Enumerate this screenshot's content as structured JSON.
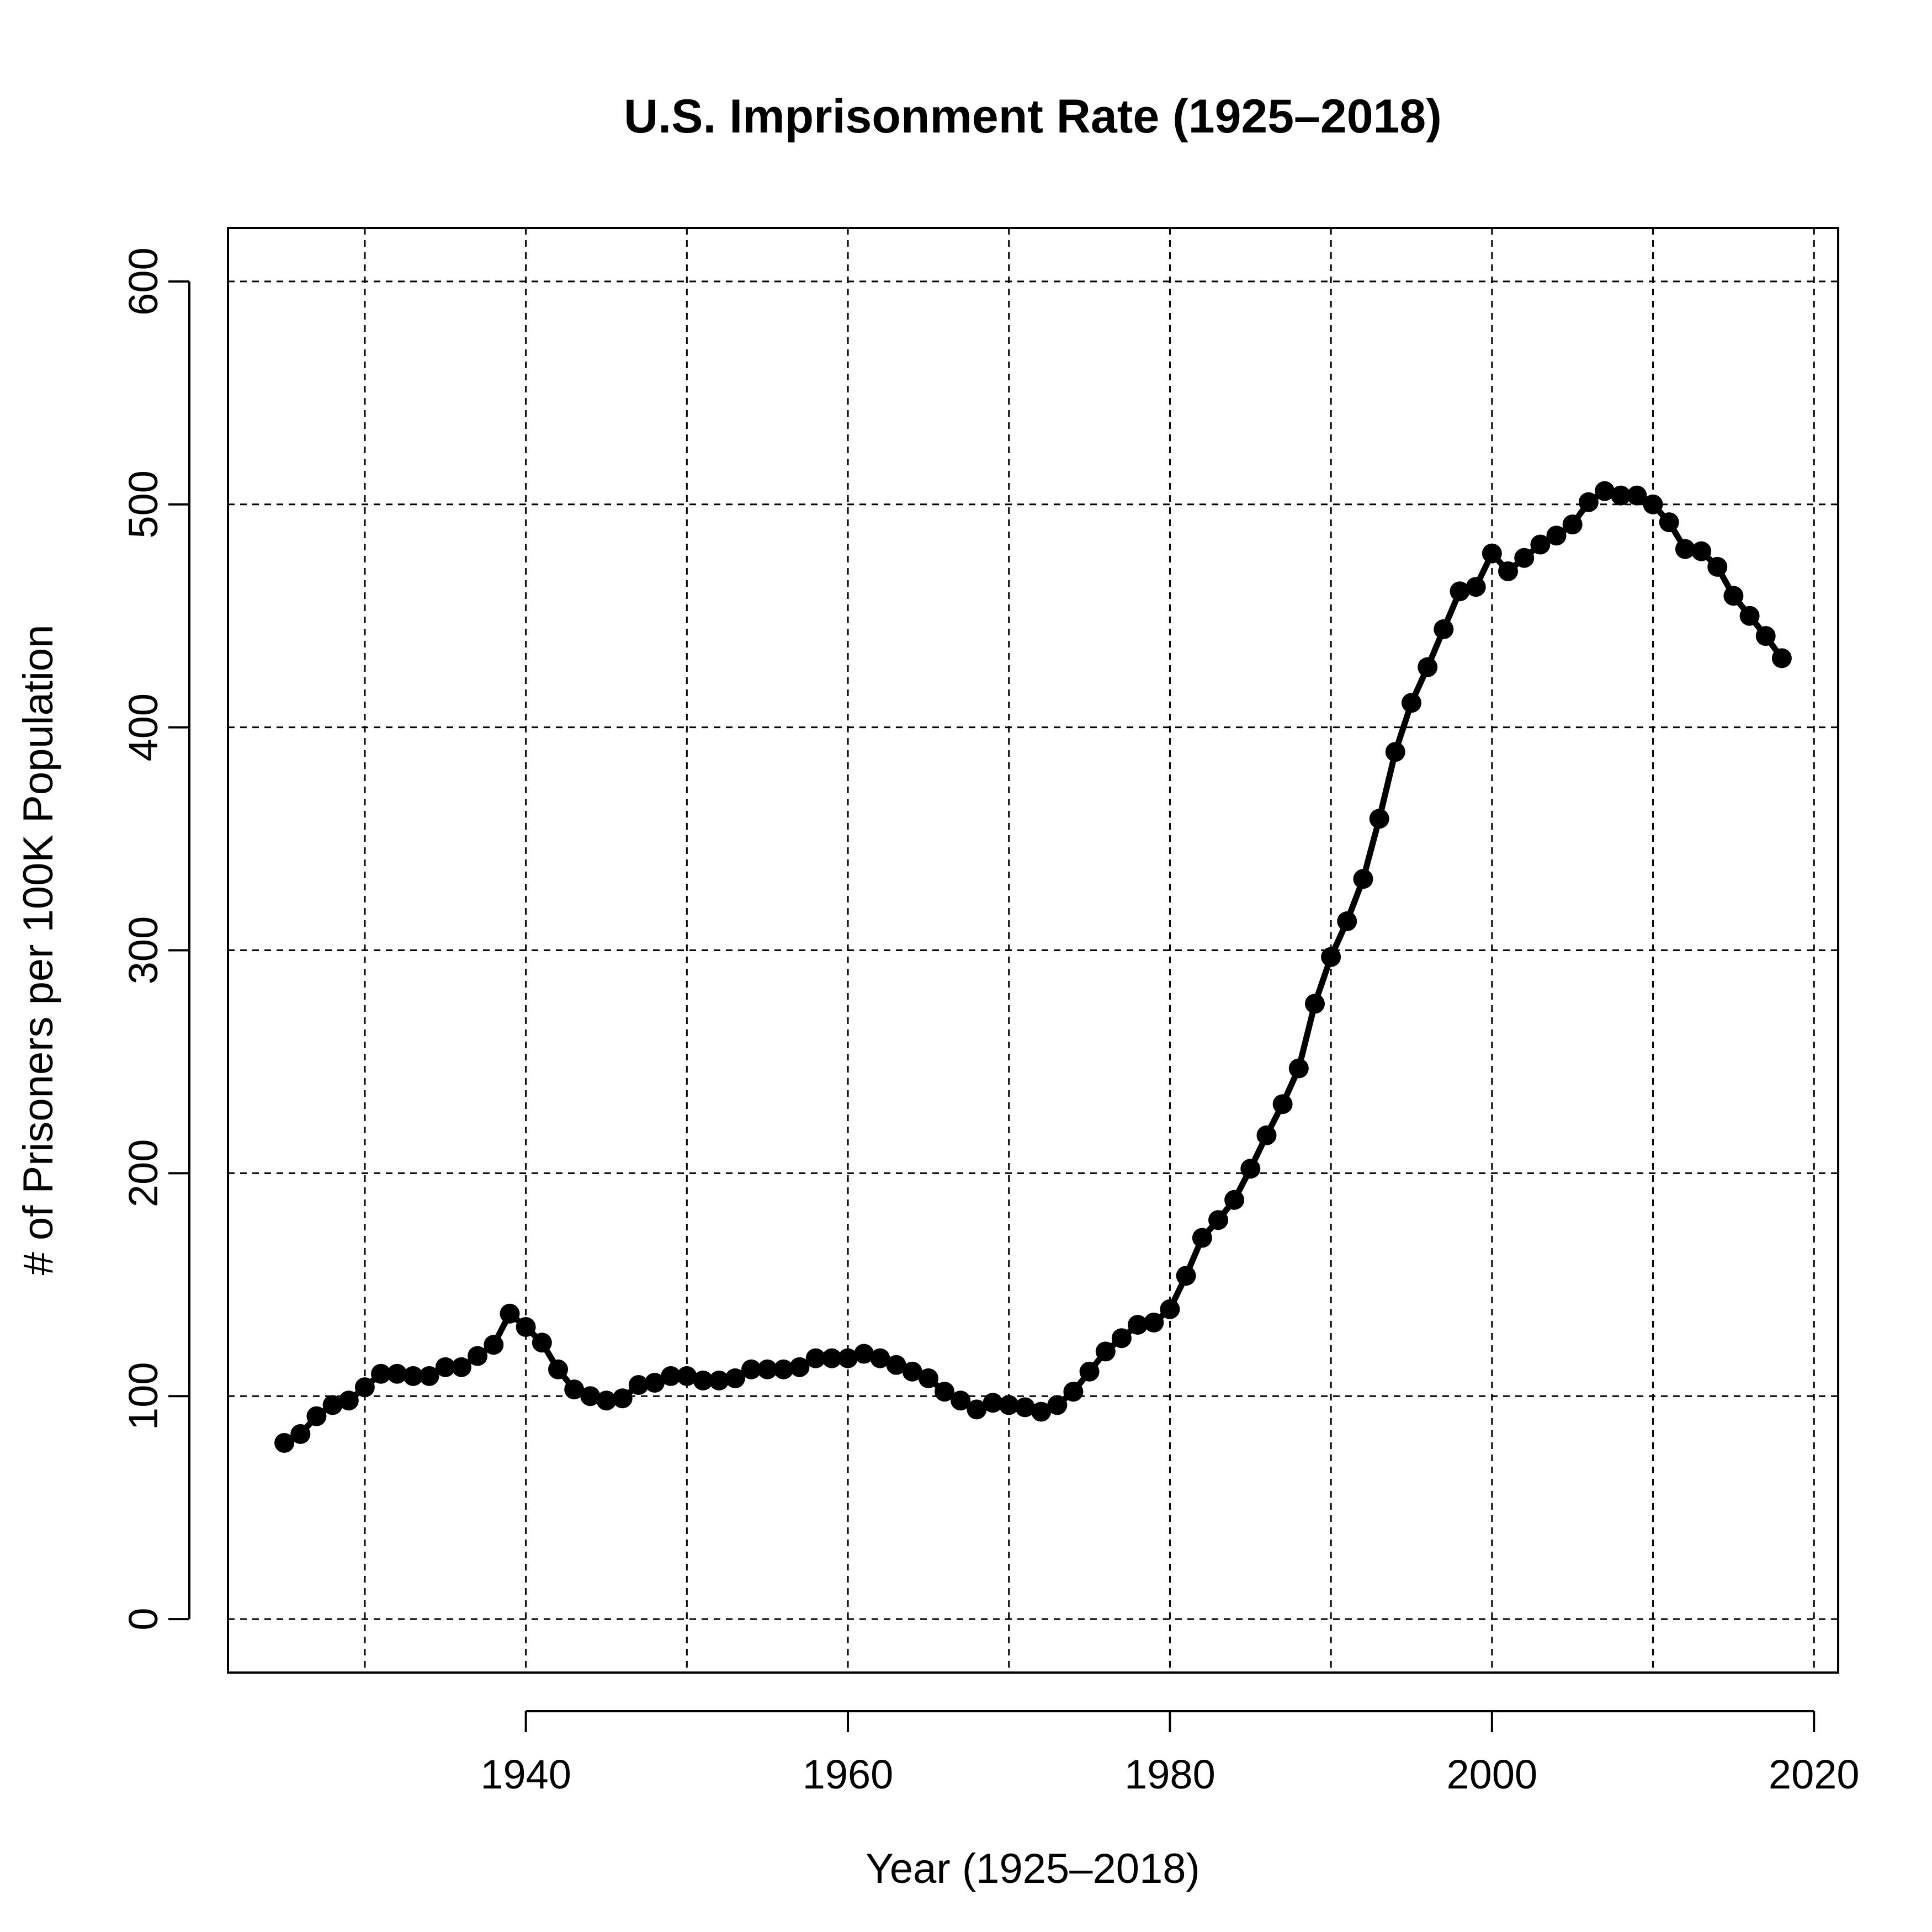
{
  "chart_data": {
    "type": "line",
    "title": "U.S. Imprisonment Rate (1925–2018)",
    "xlabel": "Year (1925–2018)",
    "ylabel": "# of Prisoners per 100K Population",
    "xlim": [
      1921.5,
      2021.5
    ],
    "ylim": [
      -24,
      624
    ],
    "x_ticks": [
      1940,
      1960,
      1980,
      2000,
      2020
    ],
    "x_tick_labels": [
      "1940",
      "1960",
      "1980",
      "2000",
      "2020"
    ],
    "y_ticks": [
      0,
      100,
      200,
      300,
      400,
      500,
      600
    ],
    "y_tick_labels": [
      "0",
      "100",
      "200",
      "300",
      "400",
      "500",
      "600"
    ],
    "grid": true,
    "grid_x": [
      1930,
      1940,
      1950,
      1960,
      1970,
      1980,
      1990,
      2000,
      2010,
      2020
    ],
    "grid_y": [
      0,
      100,
      200,
      300,
      400,
      500,
      600
    ],
    "colors": {
      "series": "#000000",
      "grid": "#000000",
      "background": "#ffffff"
    },
    "series": [
      {
        "x": [
          1925,
          1926,
          1927,
          1928,
          1929,
          1930,
          1931,
          1932,
          1933,
          1934,
          1935,
          1936,
          1937,
          1938,
          1939,
          1940,
          1941,
          1942,
          1943,
          1944,
          1945,
          1946,
          1947,
          1948,
          1949,
          1950,
          1951,
          1952,
          1953,
          1954,
          1955,
          1956,
          1957,
          1958,
          1959,
          1960,
          1961,
          1962,
          1963,
          1964,
          1965,
          1966,
          1967,
          1968,
          1969,
          1970,
          1971,
          1972,
          1973,
          1974,
          1975,
          1976,
          1977,
          1978,
          1979,
          1980,
          1981,
          1982,
          1983,
          1984,
          1985,
          1986,
          1987,
          1988,
          1989,
          1990,
          1991,
          1992,
          1993,
          1994,
          1995,
          1996,
          1997,
          1998,
          1999,
          2000,
          2001,
          2002,
          2003,
          2004,
          2005,
          2006,
          2007,
          2008,
          2009,
          2010,
          2011,
          2012,
          2013,
          2014,
          2015,
          2016,
          2017,
          2018
        ],
        "values": [
          79,
          83,
          91,
          96,
          98,
          104,
          110,
          110,
          109,
          109,
          113,
          113,
          118,
          123,
          137,
          131,
          124,
          112,
          103,
          100,
          98,
          99,
          105,
          106,
          109,
          109,
          107,
          107,
          108,
          112,
          112,
          112,
          113,
          117,
          117,
          117,
          119,
          117,
          114,
          111,
          108,
          102,
          98,
          94,
          97,
          96,
          95,
          93,
          96,
          102,
          111,
          120,
          126,
          132,
          133,
          139,
          154,
          171,
          179,
          188,
          202,
          217,
          231,
          247,
          276,
          297,
          313,
          332,
          359,
          389,
          411,
          427,
          444,
          461,
          463,
          478,
          470,
          476,
          482,
          486,
          491,
          501,
          506,
          504,
          504,
          500,
          492,
          480,
          479,
          472,
          459,
          450,
          441,
          431
        ]
      }
    ]
  }
}
